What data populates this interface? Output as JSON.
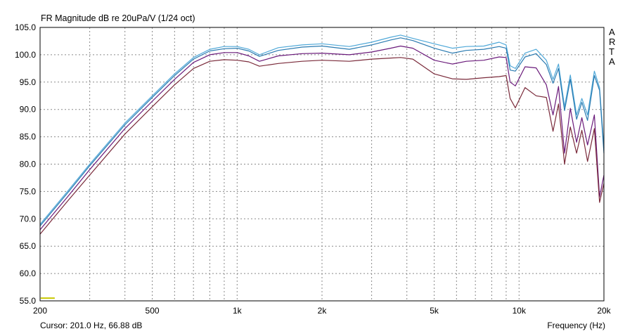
{
  "chart_data": {
    "type": "line",
    "title": "FR Magnitude dB re 20uPa/V (1/24 oct)",
    "xlabel": "Frequency (Hz)",
    "ylabel": "",
    "xscale": "log",
    "xlim": [
      200,
      20000
    ],
    "ylim": [
      55,
      105
    ],
    "grid": true,
    "x_ticks": [
      {
        "value": 200,
        "label": "200"
      },
      {
        "value": 500,
        "label": "500"
      },
      {
        "value": 1000,
        "label": "1k"
      },
      {
        "value": 2000,
        "label": "2k"
      },
      {
        "value": 5000,
        "label": "5k"
      },
      {
        "value": 10000,
        "label": "10k"
      },
      {
        "value": 20000,
        "label": "20k"
      }
    ],
    "y_ticks": [
      "55.0",
      "60.0",
      "65.0",
      "70.0",
      "75.0",
      "80.0",
      "85.0",
      "90.0",
      "95.0",
      "100.0",
      "105.0"
    ],
    "x": [
      200,
      250,
      300,
      400,
      500,
      600,
      700,
      800,
      900,
      1000,
      1100,
      1200,
      1400,
      1700,
      2000,
      2500,
      3000,
      3500,
      3800,
      4200,
      5000,
      5800,
      6500,
      7500,
      8500,
      9000,
      9300,
      9700,
      10500,
      11500,
      12500,
      13200,
      13800,
      14500,
      15200,
      16000,
      16700,
      17500,
      18500,
      19300,
      20000
    ],
    "series": [
      {
        "color": "#4fa8d8",
        "values": [
          69.0,
          75.0,
          80.0,
          87.5,
          92.5,
          96.5,
          99.5,
          101.0,
          101.5,
          101.5,
          101.0,
          100.0,
          101.3,
          101.8,
          102.0,
          101.5,
          102.3,
          103.2,
          103.6,
          103.0,
          102.0,
          101.2,
          101.5,
          101.6,
          102.3,
          101.8,
          98.0,
          97.5,
          100.3,
          101.0,
          99.0,
          95.5,
          98.3,
          90.5,
          96.3,
          89.0,
          92.0,
          89.0,
          97.0,
          94.0,
          83.0
        ]
      },
      {
        "color": "#2a7ab0",
        "values": [
          68.7,
          74.7,
          79.7,
          87.2,
          92.2,
          96.2,
          99.2,
          100.7,
          101.1,
          101.2,
          100.7,
          99.7,
          100.8,
          101.4,
          101.6,
          101.0,
          101.8,
          102.7,
          103.1,
          102.6,
          101.2,
          100.3,
          100.8,
          101.0,
          101.5,
          101.2,
          97.2,
          97.0,
          99.6,
          100.2,
          98.2,
          94.8,
          97.5,
          89.8,
          95.5,
          88.2,
          91.3,
          88.0,
          96.2,
          93.5,
          82.0
        ]
      },
      {
        "color": "#6a1a7a",
        "values": [
          68.0,
          74.0,
          79.0,
          86.5,
          91.5,
          95.5,
          98.6,
          100.0,
          100.4,
          100.4,
          99.8,
          98.8,
          99.8,
          100.2,
          100.3,
          100.0,
          100.5,
          101.2,
          101.6,
          101.2,
          99.0,
          98.3,
          98.8,
          99.0,
          99.6,
          99.5,
          95.0,
          94.3,
          97.8,
          97.6,
          94.5,
          89.0,
          94.2,
          82.0,
          90.2,
          84.0,
          88.5,
          83.5,
          89.0,
          74.0,
          78.0
        ]
      },
      {
        "color": "#7a2a3a",
        "values": [
          67.2,
          73.2,
          78.0,
          85.5,
          90.5,
          94.5,
          97.5,
          98.8,
          99.1,
          99.0,
          98.7,
          97.9,
          98.4,
          98.8,
          99.0,
          98.8,
          99.2,
          99.4,
          99.5,
          99.2,
          96.5,
          95.6,
          95.5,
          95.8,
          96.0,
          96.2,
          92.0,
          90.3,
          94.0,
          92.5,
          92.2,
          86.0,
          91.0,
          80.0,
          86.8,
          82.0,
          86.2,
          80.5,
          86.5,
          73.0,
          76.5
        ]
      }
    ],
    "marker": {
      "x": 201.0,
      "y": 55.5,
      "color": "#c8c800"
    }
  },
  "labels": {
    "arta_letters": [
      "A",
      "R",
      "T",
      "A"
    ],
    "cursor_label": "Cursor: 201.0 Hz, 66.88 dB"
  }
}
